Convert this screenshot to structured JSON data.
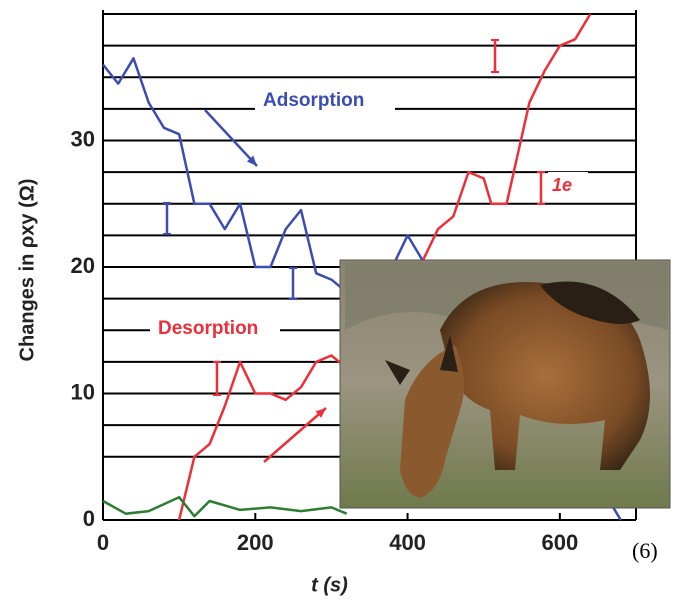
{
  "chart_data": {
    "type": "line",
    "xlabel": "t (s)",
    "ylabel": "Changes in ρxy (Ω)",
    "xlim": [
      0,
      700
    ],
    "ylim": [
      0,
      40
    ],
    "xticks": [
      0,
      200,
      400,
      600
    ],
    "yticks": [
      0,
      10,
      20,
      30
    ],
    "plateaus": [
      5,
      7.5,
      10,
      12.5,
      15,
      17.5,
      20,
      22.5,
      25,
      27.5,
      30,
      32.5,
      35,
      37.5,
      40
    ],
    "annotations": [
      "1e",
      "(6)"
    ],
    "series": [
      {
        "name": "Adsorption",
        "color": "#3b4db3",
        "x": [
          0,
          20,
          40,
          60,
          80,
          100,
          120,
          140,
          160,
          180,
          200,
          220,
          240,
          260,
          280,
          300,
          320,
          340,
          380,
          400,
          420,
          640,
          660,
          680
        ],
        "values": [
          36,
          34.5,
          36.5,
          33,
          31,
          30.5,
          25,
          25,
          23,
          25,
          20,
          20,
          23,
          24.5,
          19.5,
          19,
          18,
          null,
          20,
          22.5,
          20.5,
          null,
          2,
          0
        ]
      },
      {
        "name": "Desorption",
        "color": "#ee2f3a",
        "x": [
          100,
          120,
          140,
          160,
          180,
          200,
          220,
          240,
          260,
          280,
          300,
          320,
          340,
          420,
          440,
          460,
          480,
          500,
          510,
          530,
          560,
          580,
          600,
          620,
          640
        ],
        "values": [
          0,
          5,
          6,
          9,
          12.5,
          10,
          10,
          9.5,
          10.5,
          12.5,
          13,
          12,
          null,
          20.5,
          23,
          24,
          27.5,
          27,
          25,
          25,
          33,
          35.5,
          37.5,
          38,
          40
        ]
      },
      {
        "color": "#2e7d32",
        "x": [
          0,
          30,
          60,
          100,
          120,
          140,
          180,
          220,
          260,
          300,
          320
        ],
        "values": [
          1.5,
          0.5,
          0.7,
          1.8,
          0.3,
          1.5,
          0.8,
          1,
          0.7,
          1,
          0.5
        ]
      }
    ]
  }
}
